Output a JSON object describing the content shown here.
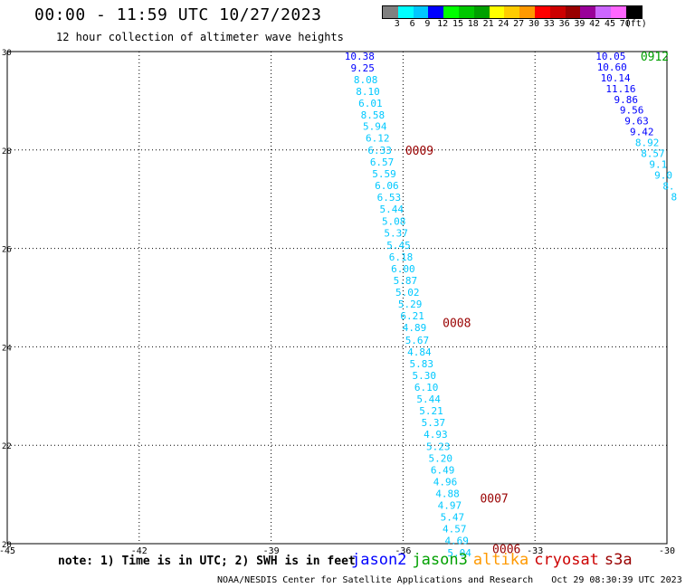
{
  "header": {
    "title": "00:00 - 11:59 UTC 10/27/2023",
    "subtitle": "12 hour collection of altimeter wave heights"
  },
  "colorbar": {
    "colors": [
      "#808080",
      "#00ffff",
      "#00c8ff",
      "#0000ff",
      "#00ff00",
      "#00c800",
      "#00a000",
      "#ffff00",
      "#ffcc00",
      "#ff9900",
      "#ff0000",
      "#cc0000",
      "#990000",
      "#990099",
      "#cc66ff",
      "#ff66ff",
      "#000000"
    ],
    "labels": [
      "3",
      "6",
      "9",
      "12",
      "15",
      "18",
      "21",
      "24",
      "27",
      "30",
      "33",
      "36",
      "39",
      "42",
      "45",
      "70",
      "(ft)"
    ]
  },
  "note": "note: 1) Time is in UTC; 2) SWH is in feet",
  "legend": [
    {
      "name": "jason2",
      "color": "#0000ff"
    },
    {
      "name": "jason3",
      "color": "#00a000"
    },
    {
      "name": "altika",
      "color": "#ff9900"
    },
    {
      "name": "cryosat",
      "color": "#cc0000"
    },
    {
      "name": "s3a",
      "color": "#990000"
    }
  ],
  "footer": {
    "credit": "NOAA/NESDIS Center for Satellite Applications and Research",
    "timestamp": "Oct 29 08:30:39 UTC 2023"
  },
  "chart_data": {
    "type": "scatter",
    "xlim": [
      -45,
      -30
    ],
    "ylim": [
      20,
      30
    ],
    "x_ticks": [
      -45,
      -42,
      -39,
      -36,
      -33,
      -30
    ],
    "x_tick_labels": [
      "-45",
      "-42",
      "-39",
      "-36",
      "-33",
      "-30"
    ],
    "y_ticks": [
      20,
      22,
      24,
      26,
      28,
      30
    ],
    "y_tick_labels": [
      "20",
      "22",
      "24",
      "26",
      "28",
      "30"
    ],
    "grid": true,
    "series": [
      {
        "color": "#00c8ff",
        "points": [
          {
            "x": -36.99,
            "y": 29.91,
            "v": "10.38",
            "c": "#0000ff"
          },
          {
            "x": -36.92,
            "y": 29.67,
            "v": "9.25",
            "c": "#0000ff"
          },
          {
            "x": -36.85,
            "y": 29.43,
            "v": "8.08"
          },
          {
            "x": -36.8,
            "y": 29.19,
            "v": "8.10"
          },
          {
            "x": -36.74,
            "y": 28.95,
            "v": "6.01"
          },
          {
            "x": -36.69,
            "y": 28.71,
            "v": "8.58"
          },
          {
            "x": -36.64,
            "y": 28.48,
            "v": "5.94"
          },
          {
            "x": -36.58,
            "y": 28.24,
            "v": "6.12"
          },
          {
            "x": -36.53,
            "y": 28.0,
            "v": "6.33"
          },
          {
            "x": -36.48,
            "y": 27.76,
            "v": "6.57"
          },
          {
            "x": -36.43,
            "y": 27.52,
            "v": "5.59"
          },
          {
            "x": -36.37,
            "y": 27.28,
            "v": "6.06"
          },
          {
            "x": -36.32,
            "y": 27.04,
            "v": "6.53"
          },
          {
            "x": -36.26,
            "y": 26.8,
            "v": "5.44"
          },
          {
            "x": -36.21,
            "y": 26.55,
            "v": "5.08"
          },
          {
            "x": -36.16,
            "y": 26.31,
            "v": "5.37"
          },
          {
            "x": -36.1,
            "y": 26.07,
            "v": "5.45"
          },
          {
            "x": -36.05,
            "y": 25.83,
            "v": "6.18"
          },
          {
            "x": -36.0,
            "y": 25.59,
            "v": "6.00"
          },
          {
            "x": -35.95,
            "y": 25.35,
            "v": "5.87"
          },
          {
            "x": -35.9,
            "y": 25.11,
            "v": "5.02"
          },
          {
            "x": -35.84,
            "y": 24.87,
            "v": "5.29"
          },
          {
            "x": -35.79,
            "y": 24.63,
            "v": "6.21"
          },
          {
            "x": -35.74,
            "y": 24.39,
            "v": "4.89"
          },
          {
            "x": -35.68,
            "y": 24.14,
            "v": "5.67"
          },
          {
            "x": -35.63,
            "y": 23.9,
            "v": "4.84"
          },
          {
            "x": -35.58,
            "y": 23.66,
            "v": "5.83"
          },
          {
            "x": -35.52,
            "y": 23.42,
            "v": "5.30"
          },
          {
            "x": -35.47,
            "y": 23.18,
            "v": "6.10"
          },
          {
            "x": -35.42,
            "y": 22.94,
            "v": "5.44"
          },
          {
            "x": -35.36,
            "y": 22.7,
            "v": "5.21"
          },
          {
            "x": -35.31,
            "y": 22.46,
            "v": "5.37"
          },
          {
            "x": -35.26,
            "y": 22.22,
            "v": "4.93"
          },
          {
            "x": -35.2,
            "y": 21.98,
            "v": "5.23"
          },
          {
            "x": -35.15,
            "y": 21.74,
            "v": "5.20"
          },
          {
            "x": -35.1,
            "y": 21.5,
            "v": "6.49"
          },
          {
            "x": -35.04,
            "y": 21.26,
            "v": "4.96"
          },
          {
            "x": -34.99,
            "y": 21.02,
            "v": "4.88"
          },
          {
            "x": -34.94,
            "y": 20.78,
            "v": "4.97"
          },
          {
            "x": -34.88,
            "y": 20.54,
            "v": "5.47"
          },
          {
            "x": -34.83,
            "y": 20.3,
            "v": "4.57"
          },
          {
            "x": -34.78,
            "y": 20.06,
            "v": "4.69"
          },
          {
            "x": -34.72,
            "y": 19.82,
            "v": "5.04"
          }
        ]
      },
      {
        "color": "#0000ff",
        "points": [
          {
            "x": -31.28,
            "y": 29.91,
            "v": "10.05"
          },
          {
            "x": -31.25,
            "y": 29.69,
            "v": "10.60"
          },
          {
            "x": -31.17,
            "y": 29.47,
            "v": "10.14"
          },
          {
            "x": -31.05,
            "y": 29.25,
            "v": "11.16"
          },
          {
            "x": -30.93,
            "y": 29.03,
            "v": "9.86"
          },
          {
            "x": -30.8,
            "y": 28.81,
            "v": "9.56"
          },
          {
            "x": -30.69,
            "y": 28.59,
            "v": "9.63"
          },
          {
            "x": -30.57,
            "y": 28.37,
            "v": "9.42"
          },
          {
            "x": -30.45,
            "y": 28.15,
            "v": "8.92",
            "c": "#00c8ff"
          },
          {
            "x": -30.32,
            "y": 27.93,
            "v": "8.57",
            "c": "#00c8ff"
          },
          {
            "x": -30.2,
            "y": 27.71,
            "v": "9.1",
            "c": "#00c8ff"
          },
          {
            "x": -30.08,
            "y": 27.49,
            "v": "9.0",
            "c": "#00c8ff"
          },
          {
            "x": -29.96,
            "y": 27.27,
            "v": "8.",
            "c": "#00c8ff"
          },
          {
            "x": -29.84,
            "y": 27.05,
            "v": "8",
            "c": "#00c8ff"
          }
        ]
      }
    ],
    "time_labels": [
      {
        "x": -35.95,
        "y": 28.0,
        "text": "0009",
        "color": "#990000"
      },
      {
        "x": -35.1,
        "y": 24.49,
        "text": "0008",
        "color": "#990000"
      },
      {
        "x": -34.25,
        "y": 20.93,
        "text": "0007",
        "color": "#990000"
      },
      {
        "x": -33.97,
        "y": 19.9,
        "text": "0006",
        "color": "#990000"
      },
      {
        "x": -30.6,
        "y": 29.91,
        "text": "0912",
        "color": "#00a000"
      }
    ]
  }
}
